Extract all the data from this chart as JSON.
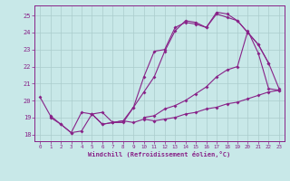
{
  "xlabel": "Windchill (Refroidissement éolien,°C)",
  "bg_color": "#c8e8e8",
  "line_color": "#882288",
  "grid_color": "#aacccc",
  "xlim": [
    -0.5,
    23.5
  ],
  "ylim": [
    17.6,
    25.6
  ],
  "xticks": [
    0,
    1,
    2,
    3,
    4,
    5,
    6,
    7,
    8,
    9,
    10,
    11,
    12,
    13,
    14,
    15,
    16,
    17,
    18,
    19,
    20,
    21,
    22,
    23
  ],
  "yticks": [
    18,
    19,
    20,
    21,
    22,
    23,
    24,
    25
  ],
  "lines": [
    {
      "x": [
        0,
        1,
        2,
        3,
        4,
        5,
        6,
        7,
        8,
        9,
        10,
        11,
        12,
        13,
        14,
        15,
        16,
        17,
        18,
        19,
        20,
        21,
        22
      ],
      "y": [
        20.2,
        19.1,
        18.6,
        18.1,
        18.2,
        19.2,
        18.6,
        18.7,
        18.7,
        19.6,
        21.4,
        22.9,
        23.0,
        24.3,
        24.6,
        24.5,
        24.3,
        25.2,
        25.1,
        24.7,
        24.0,
        23.3,
        22.2
      ]
    },
    {
      "x": [
        1,
        2,
        3,
        4,
        5,
        6,
        7,
        8,
        9,
        10,
        11,
        12,
        13,
        14,
        15,
        16,
        17,
        18,
        19,
        20,
        21,
        22,
        23
      ],
      "y": [
        19.0,
        18.6,
        18.1,
        19.3,
        19.2,
        19.3,
        18.7,
        18.8,
        18.7,
        18.9,
        18.8,
        18.9,
        19.0,
        19.2,
        19.3,
        19.5,
        19.6,
        19.8,
        19.9,
        20.1,
        20.3,
        20.5,
        20.6
      ]
    },
    {
      "x": [
        5,
        6,
        7,
        8,
        9,
        10,
        11,
        12,
        13,
        14,
        15,
        16,
        17,
        18,
        19,
        20,
        21,
        22,
        23
      ],
      "y": [
        19.2,
        18.6,
        18.7,
        18.8,
        19.6,
        20.5,
        21.4,
        22.9,
        24.1,
        24.7,
        24.6,
        24.3,
        25.1,
        24.9,
        24.7,
        24.0,
        23.3,
        22.2,
        20.7
      ]
    },
    {
      "x": [
        10,
        11,
        12,
        13,
        14,
        15,
        16,
        17,
        18,
        19,
        20,
        21,
        22,
        23
      ],
      "y": [
        19.0,
        19.1,
        19.5,
        19.7,
        20.0,
        20.4,
        20.8,
        21.4,
        21.8,
        22.0,
        24.1,
        22.8,
        20.7,
        20.6
      ]
    }
  ]
}
